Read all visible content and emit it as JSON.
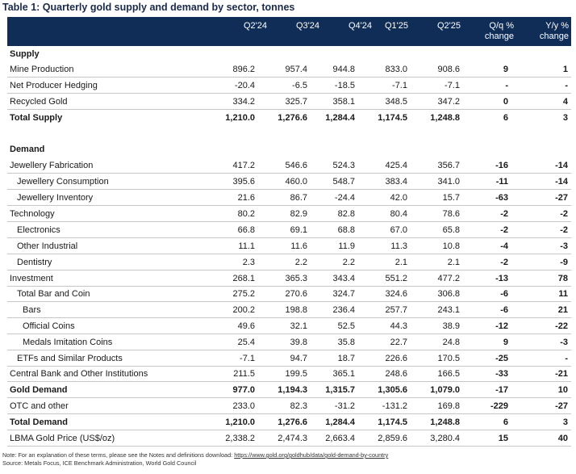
{
  "title": "Table 1: Quarterly gold supply and demand by sector, tonnes",
  "header": {
    "cols": [
      "Q2'24",
      "Q3'24",
      "Q4'24",
      "Q1'25",
      "Q2'25"
    ],
    "qq_line1": "Q/q %",
    "qq_line2": "change",
    "yy_line1": "Y/y %",
    "yy_line2": "change"
  },
  "rows": [
    {
      "label": "Supply",
      "type": "section",
      "values": [
        "",
        "",
        "",
        "",
        ""
      ],
      "qq": "",
      "yy": ""
    },
    {
      "label": "Mine Production",
      "type": "normal",
      "indent": 0,
      "values": [
        "896.2",
        "957.4",
        "944.8",
        "833.0",
        "908.6"
      ],
      "qq": "9",
      "yy": "1"
    },
    {
      "label": "Net Producer Hedging",
      "type": "normal",
      "indent": 0,
      "values": [
        "-20.4",
        "-6.5",
        "-18.5",
        "-7.1",
        "-7.1"
      ],
      "qq": "-",
      "yy": "-"
    },
    {
      "label": "Recycled Gold",
      "type": "normal",
      "indent": 0,
      "values": [
        "334.2",
        "325.7",
        "358.1",
        "348.5",
        "347.2"
      ],
      "qq": "0",
      "yy": "4"
    },
    {
      "label": "Total Supply",
      "type": "total",
      "indent": 0,
      "values": [
        "1,210.0",
        "1,276.6",
        "1,284.4",
        "1,174.5",
        "1,248.8"
      ],
      "qq": "6",
      "yy": "3"
    },
    {
      "label": "",
      "type": "blank",
      "values": [
        "",
        "",
        "",
        "",
        ""
      ],
      "qq": "",
      "yy": ""
    },
    {
      "label": "Demand",
      "type": "section",
      "values": [
        "",
        "",
        "",
        "",
        ""
      ],
      "qq": "",
      "yy": ""
    },
    {
      "label": "Jewellery Fabrication",
      "type": "normal",
      "indent": 0,
      "values": [
        "417.2",
        "546.6",
        "524.3",
        "425.4",
        "356.7"
      ],
      "qq": "-16",
      "yy": "-14"
    },
    {
      "label": "Jewellery Consumption",
      "type": "normal",
      "indent": 1,
      "values": [
        "395.6",
        "460.0",
        "548.7",
        "383.4",
        "341.0"
      ],
      "qq": "-11",
      "yy": "-14"
    },
    {
      "label": "Jewellery Inventory",
      "type": "normal",
      "indent": 1,
      "values": [
        "21.6",
        "86.7",
        "-24.4",
        "42.0",
        "15.7"
      ],
      "qq": "-63",
      "yy": "-27"
    },
    {
      "label": "Technology",
      "type": "normal",
      "indent": 0,
      "values": [
        "80.2",
        "82.9",
        "82.8",
        "80.4",
        "78.6"
      ],
      "qq": "-2",
      "yy": "-2"
    },
    {
      "label": "Electronics",
      "type": "normal",
      "indent": 1,
      "values": [
        "66.8",
        "69.1",
        "68.8",
        "67.0",
        "65.8"
      ],
      "qq": "-2",
      "yy": "-2"
    },
    {
      "label": "Other Industrial",
      "type": "normal",
      "indent": 1,
      "values": [
        "11.1",
        "11.6",
        "11.9",
        "11.3",
        "10.8"
      ],
      "qq": "-4",
      "yy": "-3"
    },
    {
      "label": "Dentistry",
      "type": "normal",
      "indent": 1,
      "values": [
        "2.3",
        "2.2",
        "2.2",
        "2.1",
        "2.1"
      ],
      "qq": "-2",
      "yy": "-9"
    },
    {
      "label": "Investment",
      "type": "normal",
      "indent": 0,
      "values": [
        "268.1",
        "365.3",
        "343.4",
        "551.2",
        "477.2"
      ],
      "qq": "-13",
      "yy": "78"
    },
    {
      "label": "Total Bar and Coin",
      "type": "normal",
      "indent": 1,
      "values": [
        "275.2",
        "270.6",
        "324.7",
        "324.6",
        "306.8"
      ],
      "qq": "-6",
      "yy": "11"
    },
    {
      "label": "Bars",
      "type": "normal",
      "indent": 2,
      "values": [
        "200.2",
        "198.8",
        "236.4",
        "257.7",
        "243.1"
      ],
      "qq": "-6",
      "yy": "21"
    },
    {
      "label": "Official Coins",
      "type": "normal",
      "indent": 2,
      "values": [
        "49.6",
        "32.1",
        "52.5",
        "44.3",
        "38.9"
      ],
      "qq": "-12",
      "yy": "-22"
    },
    {
      "label": "Medals Imitation Coins",
      "type": "normal",
      "indent": 2,
      "values": [
        "25.4",
        "39.8",
        "35.8",
        "22.7",
        "24.8"
      ],
      "qq": "9",
      "yy": "-3"
    },
    {
      "label": "ETFs and Similar Products",
      "type": "normal",
      "indent": 1,
      "values": [
        "-7.1",
        "94.7",
        "18.7",
        "226.6",
        "170.5"
      ],
      "qq": "-25",
      "yy": "-"
    },
    {
      "label": "Central Bank and Other Institutions",
      "type": "normal",
      "indent": 0,
      "values": [
        "211.5",
        "199.5",
        "365.1",
        "248.6",
        "166.5"
      ],
      "qq": "-33",
      "yy": "-21"
    },
    {
      "label": "Gold Demand",
      "type": "total",
      "indent": 0,
      "values": [
        "977.0",
        "1,194.3",
        "1,315.7",
        "1,305.6",
        "1,079.0"
      ],
      "qq": "-17",
      "yy": "10"
    },
    {
      "label": "OTC and other",
      "type": "normal",
      "indent": 0,
      "values": [
        "233.0",
        "82.3",
        "-31.2",
        "-131.2",
        "169.8"
      ],
      "qq": "-229",
      "yy": "-27"
    },
    {
      "label": "Total Demand",
      "type": "total",
      "indent": 0,
      "values": [
        "1,210.0",
        "1,276.6",
        "1,284.4",
        "1,174.5",
        "1,248.8"
      ],
      "qq": "6",
      "yy": "3"
    },
    {
      "label": "LBMA Gold Price (US$/oz)",
      "type": "normal",
      "indent": 0,
      "values": [
        "2,338.2",
        "2,474.3",
        "2,663.4",
        "2,859.6",
        "3,280.4"
      ],
      "qq": "15",
      "yy": "40"
    }
  ],
  "notes": {
    "note_prefix": "Note: For an explanation of these terms, please see the Notes and definitions download: ",
    "note_link": "https://www.gold.org/goldhub/data/gold-demand-by-country",
    "source": "Source: Metals Focus, ICE Benchmark Administration, World Gold Council"
  }
}
